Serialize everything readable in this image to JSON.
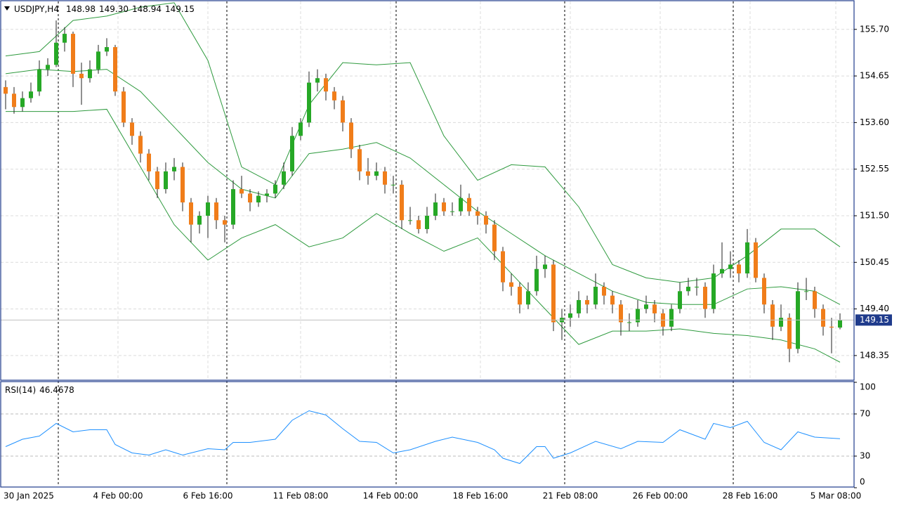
{
  "chart_data": [
    {
      "type": "candlestick",
      "title": "USDJPY,H4",
      "up_color": "#26a826",
      "down_color": "#f07d1a",
      "grid": true,
      "ylim": [
        147.81,
        156.33
      ],
      "yticks": [
        {
          "value": 155.7,
          "label": "155.70"
        },
        154.65,
        {
          "value": 153.6,
          "label": "153.60"
        },
        152.55,
        {
          "value": 151.5,
          "label": "151.50"
        },
        150.45,
        {
          "value": 149.4,
          "label": "149.40"
        },
        148.35
      ],
      "x_labels": [
        "30 Jan 2025",
        "4 Feb 00:00",
        "6 Feb 16:00",
        "11 Feb 08:00",
        "14 Feb 00:00",
        "18 Feb 16:00",
        "21 Feb 08:00",
        "26 Feb 00:00",
        "28 Feb 16:00",
        "5 Mar 08:00"
      ],
      "value_labels": {
        "99": [
          "148.98",
          "149.30",
          "148.94",
          "149.15"
        ]
      },
      "ohlc": [
        [
          154.4,
          154.55,
          153.9,
          154.25
        ],
        [
          154.25,
          154.4,
          153.8,
          153.95
        ],
        [
          153.95,
          154.3,
          153.85,
          154.15
        ],
        [
          154.15,
          154.5,
          154.05,
          154.3
        ],
        [
          154.3,
          155.0,
          154.2,
          154.8
        ],
        [
          154.8,
          155.05,
          154.65,
          154.9
        ],
        [
          154.9,
          155.9,
          154.85,
          155.4
        ],
        [
          155.4,
          155.75,
          155.2,
          155.6
        ],
        [
          155.6,
          155.65,
          154.4,
          154.7
        ],
        [
          154.7,
          154.95,
          154.0,
          154.6
        ],
        [
          154.6,
          155.0,
          154.5,
          154.8
        ],
        [
          154.8,
          155.35,
          154.7,
          155.2
        ],
        [
          155.2,
          155.5,
          155.1,
          155.3
        ],
        [
          155.3,
          155.35,
          154.2,
          154.3
        ],
        [
          154.3,
          154.4,
          153.5,
          153.6
        ],
        [
          153.6,
          153.7,
          153.1,
          153.3
        ],
        [
          153.3,
          153.4,
          152.7,
          152.9
        ],
        [
          152.9,
          153.0,
          152.3,
          152.5
        ],
        [
          152.5,
          152.6,
          151.9,
          152.1
        ],
        [
          152.1,
          152.7,
          152.0,
          152.5
        ],
        [
          152.5,
          152.8,
          152.3,
          152.6
        ],
        [
          152.6,
          152.7,
          151.6,
          151.8
        ],
        [
          151.8,
          151.9,
          150.9,
          151.3
        ],
        [
          151.3,
          151.6,
          151.1,
          151.5
        ],
        [
          151.5,
          151.95,
          151.0,
          151.8
        ],
        [
          151.8,
          151.9,
          151.2,
          151.4
        ],
        [
          151.4,
          151.5,
          150.9,
          151.3
        ],
        [
          151.3,
          152.3,
          151.2,
          152.1
        ],
        [
          152.1,
          152.4,
          151.9,
          152.0
        ],
        [
          152.0,
          152.1,
          151.6,
          151.8
        ],
        [
          151.8,
          152.05,
          151.7,
          151.95
        ],
        [
          151.95,
          152.1,
          151.8,
          152.0
        ],
        [
          152.0,
          152.3,
          151.9,
          152.2
        ],
        [
          152.2,
          152.7,
          152.1,
          152.5
        ],
        [
          152.5,
          153.5,
          152.4,
          153.3
        ],
        [
          153.3,
          153.7,
          153.2,
          153.6
        ],
        [
          153.6,
          154.75,
          153.5,
          154.5
        ],
        [
          154.5,
          154.8,
          154.3,
          154.6
        ],
        [
          154.6,
          154.7,
          154.1,
          154.3
        ],
        [
          154.3,
          154.4,
          153.9,
          154.1
        ],
        [
          154.1,
          154.2,
          153.4,
          153.6
        ],
        [
          153.6,
          153.7,
          152.8,
          153.0
        ],
        [
          153.0,
          153.1,
          152.3,
          152.5
        ],
        [
          152.5,
          152.8,
          152.2,
          152.4
        ],
        [
          152.4,
          152.7,
          152.3,
          152.5
        ],
        [
          152.5,
          152.6,
          152.0,
          152.2
        ],
        [
          152.2,
          152.4,
          152.0,
          152.2
        ],
        [
          152.2,
          152.3,
          151.2,
          151.4
        ],
        [
          151.4,
          151.7,
          151.3,
          151.4
        ],
        [
          151.4,
          151.5,
          151.1,
          151.2
        ],
        [
          151.2,
          151.7,
          151.1,
          151.5
        ],
        [
          151.5,
          152.0,
          151.4,
          151.8
        ],
        [
          151.8,
          151.9,
          151.5,
          151.6
        ],
        [
          151.6,
          151.8,
          151.5,
          151.6
        ],
        [
          151.6,
          152.2,
          151.5,
          151.9
        ],
        [
          151.9,
          152.0,
          151.5,
          151.6
        ],
        [
          151.6,
          151.7,
          151.3,
          151.5
        ],
        [
          151.5,
          151.6,
          151.1,
          151.3
        ],
        [
          151.3,
          151.4,
          150.5,
          150.7
        ],
        [
          150.7,
          150.8,
          149.8,
          150.0
        ],
        [
          150.0,
          150.2,
          149.7,
          149.9
        ],
        [
          149.9,
          150.0,
          149.3,
          149.5
        ],
        [
          149.5,
          150.0,
          149.4,
          149.8
        ],
        [
          149.8,
          150.6,
          149.7,
          150.3
        ],
        [
          150.3,
          150.6,
          150.1,
          150.4
        ],
        [
          150.4,
          150.5,
          148.9,
          149.1
        ],
        [
          149.1,
          149.4,
          148.7,
          149.2
        ],
        [
          149.2,
          149.5,
          149.0,
          149.3
        ],
        [
          149.3,
          149.8,
          149.2,
          149.6
        ],
        [
          149.6,
          149.7,
          149.3,
          149.5
        ],
        [
          149.5,
          150.2,
          149.4,
          149.9
        ],
        [
          149.9,
          150.0,
          149.5,
          149.7
        ],
        [
          149.7,
          149.8,
          149.3,
          149.5
        ],
        [
          149.5,
          149.6,
          148.8,
          149.1
        ],
        [
          149.1,
          149.3,
          148.9,
          149.1
        ],
        [
          149.1,
          149.6,
          149.0,
          149.4
        ],
        [
          149.4,
          149.7,
          149.3,
          149.5
        ],
        [
          149.5,
          149.6,
          149.1,
          149.3
        ],
        [
          149.3,
          149.4,
          148.8,
          149.0
        ],
        [
          149.0,
          149.5,
          148.9,
          149.4
        ],
        [
          149.4,
          150.0,
          149.3,
          149.8
        ],
        [
          149.8,
          150.1,
          149.7,
          149.9
        ],
        [
          149.9,
          150.1,
          149.7,
          149.9
        ],
        [
          149.9,
          150.0,
          149.2,
          149.4
        ],
        [
          149.4,
          150.4,
          149.3,
          150.2
        ],
        [
          150.2,
          150.9,
          150.1,
          150.3
        ],
        [
          150.3,
          150.7,
          150.1,
          150.4
        ],
        [
          150.4,
          150.5,
          150.0,
          150.2
        ],
        [
          150.2,
          151.2,
          150.1,
          150.9
        ],
        [
          150.9,
          151.0,
          150.0,
          150.1
        ],
        [
          150.1,
          150.2,
          149.3,
          149.5
        ],
        [
          149.5,
          149.6,
          148.7,
          149.0
        ],
        [
          149.0,
          149.5,
          148.9,
          149.2
        ],
        [
          149.2,
          149.3,
          148.2,
          148.5
        ],
        [
          148.5,
          150.0,
          148.4,
          149.8
        ],
        [
          149.8,
          150.1,
          149.6,
          149.8
        ],
        [
          149.8,
          149.9,
          149.2,
          149.4
        ],
        [
          149.4,
          149.5,
          148.8,
          149.0
        ],
        [
          149.0,
          149.2,
          148.4,
          148.98
        ],
        [
          148.98,
          149.3,
          148.94,
          149.15
        ]
      ],
      "bands": {
        "color": "#2e9a3e",
        "x": [
          0,
          4,
          8,
          12,
          16,
          20,
          24,
          28,
          32,
          36,
          40,
          44,
          48,
          52,
          56,
          60,
          64,
          68,
          72,
          76,
          80,
          84,
          88,
          92,
          96,
          99
        ],
        "upper": [
          155.1,
          155.2,
          155.9,
          156.0,
          156.2,
          156.3,
          155.0,
          152.6,
          152.2,
          154.0,
          154.95,
          154.9,
          154.95,
          153.3,
          152.3,
          152.65,
          152.6,
          151.7,
          150.4,
          150.1,
          150.0,
          150.1,
          150.6,
          151.2,
          151.2,
          150.8
        ],
        "middle": [
          154.7,
          154.8,
          154.75,
          154.8,
          154.3,
          153.5,
          152.7,
          152.1,
          151.9,
          152.9,
          153.0,
          153.15,
          152.8,
          152.2,
          151.6,
          151.1,
          150.6,
          150.2,
          149.8,
          149.55,
          149.5,
          149.5,
          149.85,
          149.9,
          149.8,
          149.5
        ],
        "lower": [
          153.85,
          153.85,
          153.85,
          153.9,
          152.6,
          151.3,
          150.5,
          151.0,
          151.3,
          150.8,
          151.0,
          151.55,
          151.1,
          150.7,
          151.0,
          150.2,
          149.4,
          148.6,
          148.9,
          148.9,
          148.95,
          148.85,
          148.8,
          148.7,
          148.5,
          148.2
        ]
      }
    },
    {
      "type": "line",
      "title": "RSI(14)",
      "color": "#1e90ff",
      "ylim": [
        0,
        100
      ],
      "yticks": [
        100,
        70,
        30,
        0
      ],
      "x": [
        0,
        2,
        4,
        6,
        8,
        10,
        12,
        13,
        15,
        17,
        19,
        21,
        24,
        26,
        27,
        29,
        32,
        34,
        36,
        38,
        40,
        42,
        44,
        46,
        48,
        51,
        53,
        56,
        58,
        59,
        61,
        63,
        64,
        65,
        67,
        70,
        73,
        75,
        78,
        80,
        83,
        84,
        86,
        88,
        90,
        92,
        94,
        96,
        99
      ],
      "values": [
        39,
        46,
        49,
        61,
        53,
        55,
        55,
        41,
        33,
        31,
        36,
        31,
        37,
        36,
        43,
        43,
        46,
        64,
        73,
        69,
        56,
        44,
        43,
        33,
        36,
        44,
        48,
        43,
        36,
        28,
        23,
        39,
        39,
        28,
        33,
        44,
        37,
        44,
        43,
        55,
        46,
        61,
        57,
        63,
        43,
        36,
        53,
        48,
        46.4678
      ]
    }
  ]
}
